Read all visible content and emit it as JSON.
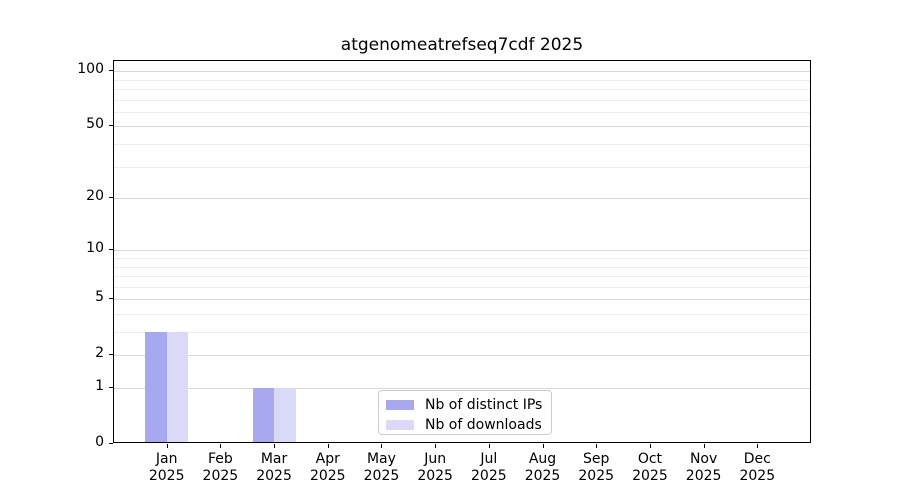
{
  "title": "atgenomeatrefseq7cdf 2025",
  "chart_data": {
    "type": "bar",
    "title": "atgenomeatrefseq7cdf 2025",
    "xlabel": "",
    "ylabel": "",
    "categories": [
      "Jan",
      "Feb",
      "Mar",
      "Apr",
      "May",
      "Jun",
      "Jul",
      "Aug",
      "Sep",
      "Oct",
      "Nov",
      "Dec"
    ],
    "category_year": "2025",
    "series": [
      {
        "name": "Nb of distinct IPs",
        "color": "#a8a8f0",
        "values": [
          3,
          0,
          1,
          0,
          0,
          0,
          0,
          0,
          0,
          0,
          0,
          0
        ]
      },
      {
        "name": "Nb of downloads",
        "color": "#dadaf8",
        "values": [
          3,
          0,
          1,
          0,
          0,
          0,
          0,
          0,
          0,
          0,
          0,
          0
        ]
      }
    ],
    "y_scale": "log1p",
    "ylim": [
      0,
      113
    ],
    "yticks": [
      0,
      1,
      2,
      5,
      10,
      20,
      50,
      100
    ],
    "ytick_labels": [
      "0",
      "1",
      "2",
      "5",
      "10",
      "20",
      "50",
      "100"
    ],
    "minor_gridline_values": [
      3,
      4,
      6,
      7,
      8,
      9,
      30,
      40,
      60,
      70,
      80,
      90
    ],
    "grid": "on",
    "legend_position": "lower center inside",
    "colors": {
      "axis": "#000000",
      "grid_major": "#d9d9d9",
      "grid_minor": "#ededed"
    }
  }
}
